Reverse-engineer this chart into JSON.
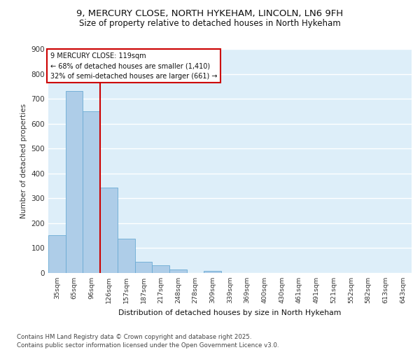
{
  "title_line1": "9, MERCURY CLOSE, NORTH HYKEHAM, LINCOLN, LN6 9FH",
  "title_line2": "Size of property relative to detached houses in North Hykeham",
  "xlabel": "Distribution of detached houses by size in North Hykeham",
  "ylabel": "Number of detached properties",
  "footer": "Contains HM Land Registry data © Crown copyright and database right 2025.\nContains public sector information licensed under the Open Government Licence v3.0.",
  "bar_labels": [
    "35sqm",
    "65sqm",
    "96sqm",
    "126sqm",
    "157sqm",
    "187sqm",
    "217sqm",
    "248sqm",
    "278sqm",
    "309sqm",
    "339sqm",
    "369sqm",
    "400sqm",
    "430sqm",
    "461sqm",
    "491sqm",
    "521sqm",
    "552sqm",
    "582sqm",
    "613sqm",
    "643sqm"
  ],
  "bar_values": [
    152,
    730,
    650,
    342,
    137,
    46,
    31,
    14,
    0,
    9,
    0,
    0,
    0,
    0,
    0,
    0,
    0,
    0,
    0,
    0,
    0
  ],
  "bar_color": "#aecde8",
  "bar_edge_color": "#6aaad4",
  "bg_color": "#ddeef9",
  "grid_color": "#ffffff",
  "vline_x": 2.5,
  "vline_color": "#cc0000",
  "annotation_text": "9 MERCURY CLOSE: 119sqm\n← 68% of detached houses are smaller (1,410)\n32% of semi-detached houses are larger (661) →",
  "annotation_box_color": "#ffffff",
  "annotation_box_edge": "#cc0000",
  "ylim": [
    0,
    900
  ],
  "yticks": [
    0,
    100,
    200,
    300,
    400,
    500,
    600,
    700,
    800,
    900
  ]
}
